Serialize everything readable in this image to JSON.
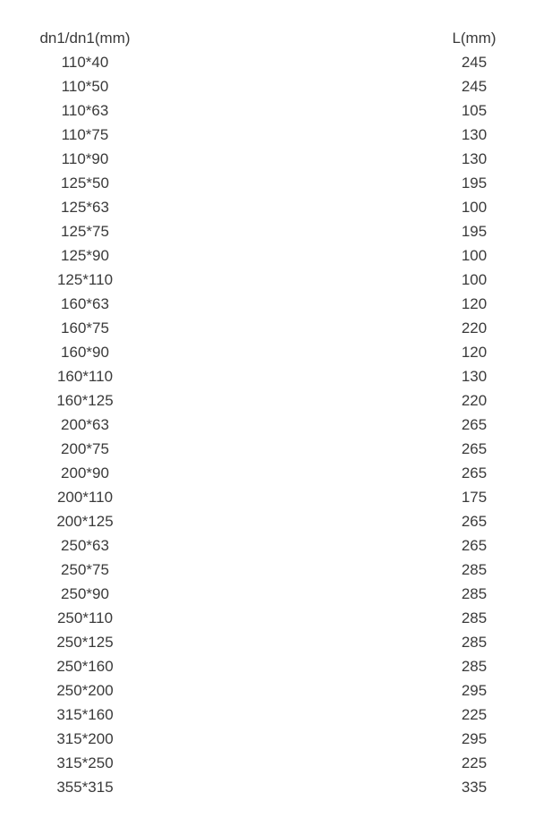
{
  "colors": {
    "background": "#ffffff",
    "text": "#3a3a3a"
  },
  "table": {
    "columns": [
      {
        "label": "dn1/dn1(mm)"
      },
      {
        "label": "L(mm)"
      }
    ],
    "rows": [
      {
        "dn": "110*40",
        "l": "245"
      },
      {
        "dn": "110*50",
        "l": "245"
      },
      {
        "dn": "110*63",
        "l": "105"
      },
      {
        "dn": "110*75",
        "l": "130"
      },
      {
        "dn": "110*90",
        "l": "130"
      },
      {
        "dn": "125*50",
        "l": "195"
      },
      {
        "dn": "125*63",
        "l": "100"
      },
      {
        "dn": "125*75",
        "l": "195"
      },
      {
        "dn": "125*90",
        "l": "100"
      },
      {
        "dn": "125*110",
        "l": "100"
      },
      {
        "dn": "160*63",
        "l": "120"
      },
      {
        "dn": "160*75",
        "l": "220"
      },
      {
        "dn": "160*90",
        "l": "120"
      },
      {
        "dn": "160*110",
        "l": "130"
      },
      {
        "dn": "160*125",
        "l": "220"
      },
      {
        "dn": "200*63",
        "l": "265"
      },
      {
        "dn": "200*75",
        "l": "265"
      },
      {
        "dn": "200*90",
        "l": "265"
      },
      {
        "dn": "200*110",
        "l": "175"
      },
      {
        "dn": "200*125",
        "l": "265"
      },
      {
        "dn": "250*63",
        "l": "265"
      },
      {
        "dn": "250*75",
        "l": "285"
      },
      {
        "dn": "250*90",
        "l": "285"
      },
      {
        "dn": "250*110",
        "l": "285"
      },
      {
        "dn": "250*125",
        "l": "285"
      },
      {
        "dn": "250*160",
        "l": "285"
      },
      {
        "dn": "250*200",
        "l": "295"
      },
      {
        "dn": "315*160",
        "l": "225"
      },
      {
        "dn": "315*200",
        "l": "295"
      },
      {
        "dn": "315*250",
        "l": "225"
      },
      {
        "dn": "355*315",
        "l": "335"
      }
    ]
  }
}
